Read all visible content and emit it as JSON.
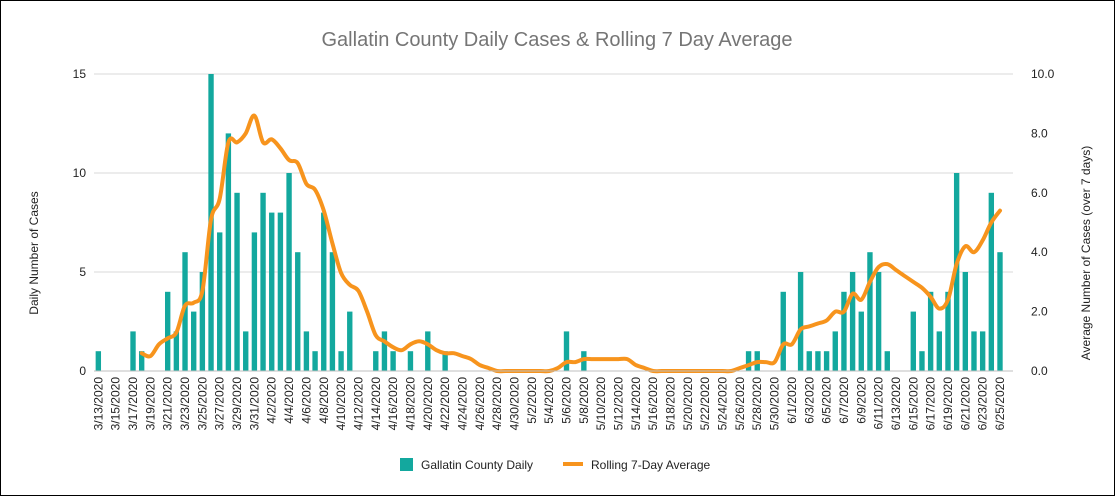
{
  "chart_data": {
    "type": "bar",
    "title": "Gallatin County Daily Cases & Rolling 7 Day Average",
    "ylabel": "Daily Number of Cases",
    "y2label": "Average Number of Cases (over 7 days)",
    "ylim": [
      0,
      15
    ],
    "y2lim": [
      0,
      10
    ],
    "yticks": [
      "0",
      "5",
      "10",
      "15"
    ],
    "y2ticks": [
      "0.0",
      "2.0",
      "4.0",
      "6.0",
      "8.0",
      "10.0"
    ],
    "grid": true,
    "legend_position": "bottom",
    "x": [
      "3/13/2020",
      "3/14/2020",
      "3/15/2020",
      "3/16/2020",
      "3/17/2020",
      "3/18/2020",
      "3/19/2020",
      "3/20/2020",
      "3/21/2020",
      "3/22/2020",
      "3/23/2020",
      "3/24/2020",
      "3/25/2020",
      "3/26/2020",
      "3/27/2020",
      "3/28/2020",
      "3/29/2020",
      "3/30/2020",
      "3/31/2020",
      "4/1/2020",
      "4/2/2020",
      "4/3/2020",
      "4/4/2020",
      "4/5/2020",
      "4/6/2020",
      "4/7/2020",
      "4/8/2020",
      "4/9/2020",
      "4/10/2020",
      "4/11/2020",
      "4/12/2020",
      "4/13/2020",
      "4/14/2020",
      "4/15/2020",
      "4/16/2020",
      "4/17/2020",
      "4/18/2020",
      "4/19/2020",
      "4/20/2020",
      "4/21/2020",
      "4/22/2020",
      "4/23/2020",
      "4/24/2020",
      "4/25/2020",
      "4/26/2020",
      "4/27/2020",
      "4/28/2020",
      "4/29/2020",
      "4/30/2020",
      "5/1/2020",
      "5/2/2020",
      "5/3/2020",
      "5/4/2020",
      "5/5/2020",
      "5/6/2020",
      "5/7/2020",
      "5/8/2020",
      "5/9/2020",
      "5/10/2020",
      "5/11/2020",
      "5/12/2020",
      "5/13/2020",
      "5/14/2020",
      "5/15/2020",
      "5/16/2020",
      "5/17/2020",
      "5/18/2020",
      "5/19/2020",
      "5/20/2020",
      "5/21/2020",
      "5/22/2020",
      "5/23/2020",
      "5/24/2020",
      "5/25/2020",
      "5/26/2020",
      "5/27/2020",
      "5/28/2020",
      "5/29/2020",
      "5/30/2020",
      "5/31/2020",
      "6/1/2020",
      "6/2/2020",
      "6/3/2020",
      "6/4/2020",
      "6/5/2020",
      "6/6/2020",
      "6/7/2020",
      "6/8/2020",
      "6/9/2020",
      "6/10/2020",
      "6/11/2020",
      "6/12/2020",
      "6/13/2020",
      "6/14/2020",
      "6/15/2020",
      "6/16/2020",
      "6/17/2020",
      "6/18/2020",
      "6/19/2020",
      "6/20/2020",
      "6/21/2020",
      "6/22/2020",
      "6/23/2020",
      "6/24/2020",
      "6/25/2020",
      "6/26/2020"
    ],
    "xtick_labels": [
      "3/13/2020",
      "3/15/2020",
      "3/17/2020",
      "3/19/2020",
      "3/21/2020",
      "3/23/2020",
      "3/25/2020",
      "3/27/2020",
      "3/29/2020",
      "3/31/2020",
      "4/2/2020",
      "4/4/2020",
      "4/6/2020",
      "4/8/2020",
      "4/10/2020",
      "4/12/2020",
      "4/14/2020",
      "4/16/2020",
      "4/18/2020",
      "4/20/2020",
      "4/22/2020",
      "4/24/2020",
      "4/26/2020",
      "4/28/2020",
      "4/30/2020",
      "5/2/2020",
      "5/4/2020",
      "5/6/2020",
      "5/8/2020",
      "5/10/2020",
      "5/12/2020",
      "5/14/2020",
      "5/16/2020",
      "5/18/2020",
      "5/20/2020",
      "5/22/2020",
      "5/24/2020",
      "5/26/2020",
      "5/28/2020",
      "5/30/2020",
      "6/1/2020",
      "6/3/2020",
      "6/5/2020",
      "6/7/2020",
      "6/9/2020",
      "6/11/2020",
      "6/13/2020",
      "6/15/2020",
      "6/17/2020",
      "6/19/2020",
      "6/21/2020",
      "6/23/2020",
      "6/25/2020"
    ],
    "series": [
      {
        "name": "Gallatin County Daily",
        "type": "bar",
        "axis": "left",
        "color": "#13a89e",
        "values": [
          1,
          0,
          0,
          0,
          2,
          1,
          0,
          0,
          4,
          2,
          6,
          3,
          5,
          15,
          7,
          12,
          9,
          2,
          7,
          9,
          8,
          8,
          10,
          6,
          2,
          1,
          8,
          6,
          1,
          3,
          0,
          0,
          1,
          2,
          1,
          0,
          1,
          0,
          2,
          0,
          1,
          0,
          0,
          0,
          0,
          0,
          0,
          0,
          0,
          0,
          0,
          0,
          0,
          0,
          2,
          0,
          1,
          0,
          0,
          0,
          0,
          0,
          0,
          0,
          0,
          0,
          0,
          0,
          0,
          0,
          0,
          0,
          0,
          0,
          0,
          1,
          1,
          0,
          0,
          4,
          0,
          5,
          1,
          1,
          1,
          2,
          4,
          5,
          3,
          6,
          5,
          1,
          0,
          0,
          3,
          1,
          4,
          2,
          4,
          10,
          5,
          2,
          2,
          9,
          6,
          0
        ]
      },
      {
        "name": "Rolling 7-Day Average",
        "type": "line",
        "axis": "right",
        "color": "#f7941d",
        "values": [
          null,
          null,
          null,
          null,
          null,
          0.6,
          0.5,
          0.9,
          1.1,
          1.3,
          2.2,
          2.3,
          2.7,
          5.1,
          5.8,
          7.7,
          7.7,
          8.0,
          8.6,
          7.7,
          7.8,
          7.5,
          7.1,
          7.0,
          6.3,
          6.1,
          5.4,
          4.3,
          3.3,
          2.9,
          2.7,
          2.0,
          1.2,
          1.0,
          0.8,
          0.7,
          0.9,
          1.0,
          0.9,
          0.7,
          0.6,
          0.6,
          0.5,
          0.4,
          0.2,
          0.1,
          0.0,
          0.0,
          0.0,
          0.0,
          0.0,
          0.0,
          0.0,
          0.1,
          0.3,
          0.3,
          0.4,
          0.4,
          0.4,
          0.4,
          0.4,
          0.4,
          0.2,
          0.1,
          0.0,
          0.0,
          0.0,
          0.0,
          0.0,
          0.0,
          0.0,
          0.0,
          0.0,
          0.0,
          0.1,
          0.2,
          0.3,
          0.3,
          0.3,
          0.9,
          0.9,
          1.4,
          1.5,
          1.6,
          1.7,
          2.0,
          2.0,
          2.6,
          2.4,
          3.0,
          3.5,
          3.6,
          3.4,
          3.2,
          3.0,
          2.8,
          2.5,
          2.1,
          2.4,
          3.6,
          4.2,
          4.0,
          4.4,
          5.0,
          5.4,
          null
        ]
      }
    ]
  }
}
